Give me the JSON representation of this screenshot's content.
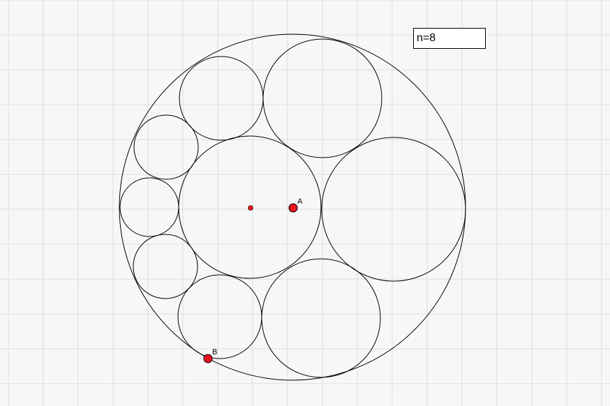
{
  "input_box": {
    "value": "n=8"
  },
  "points": {
    "a": {
      "label": "A"
    },
    "b": {
      "label": "B"
    }
  },
  "colors": {
    "background": "#f7f7f7",
    "grid": "#dcdcdc",
    "stroke": "#000000",
    "point_fill": "#e8141a"
  }
}
